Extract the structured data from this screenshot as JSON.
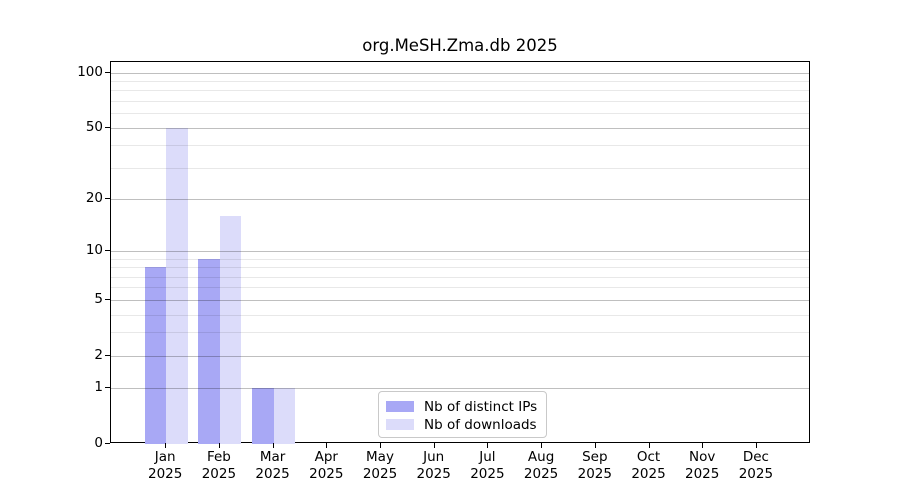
{
  "title": "org.MeSH.Zma.db 2025",
  "chart_data": {
    "type": "bar",
    "title": "org.MeSH.Zma.db 2025",
    "x_months": [
      "Jan",
      "Feb",
      "Mar",
      "Apr",
      "May",
      "Jun",
      "Jul",
      "Aug",
      "Sep",
      "Oct",
      "Nov",
      "Dec"
    ],
    "x_year": "2025",
    "series": [
      {
        "name": "Nb of distinct IPs",
        "color": "#a8a8f5",
        "values": [
          8,
          9,
          1,
          0,
          0,
          0,
          0,
          0,
          0,
          0,
          0,
          0
        ]
      },
      {
        "name": "Nb of downloads",
        "color": "#dcdcfa",
        "values": [
          50,
          16,
          1,
          0,
          0,
          0,
          0,
          0,
          0,
          0,
          0,
          0
        ]
      }
    ],
    "y_scale": "log1p",
    "y_major_ticks": [
      0,
      1,
      2,
      5,
      10,
      20,
      50,
      100
    ],
    "y_minor_ticks": [
      3,
      4,
      6,
      7,
      8,
      9,
      30,
      40,
      60,
      70,
      80,
      90
    ],
    "ylim": [
      0,
      115
    ],
    "xlabel": "",
    "ylabel": "",
    "grid": true,
    "legend_position": "bottom-center",
    "colors": {
      "bar_distinct_ips": "#a8a8f5",
      "bar_downloads": "#dcdcfa",
      "major_grid": "rgba(0,0,0,0.25)",
      "minor_grid": "rgba(0,0,0,0.09)",
      "spine": "#000000",
      "text": "#000000",
      "background": "#ffffff"
    }
  },
  "legend": {
    "items": [
      {
        "label": "Nb of distinct IPs",
        "color": "#a8a8f5"
      },
      {
        "label": "Nb of downloads",
        "color": "#dcdcfa"
      }
    ]
  }
}
